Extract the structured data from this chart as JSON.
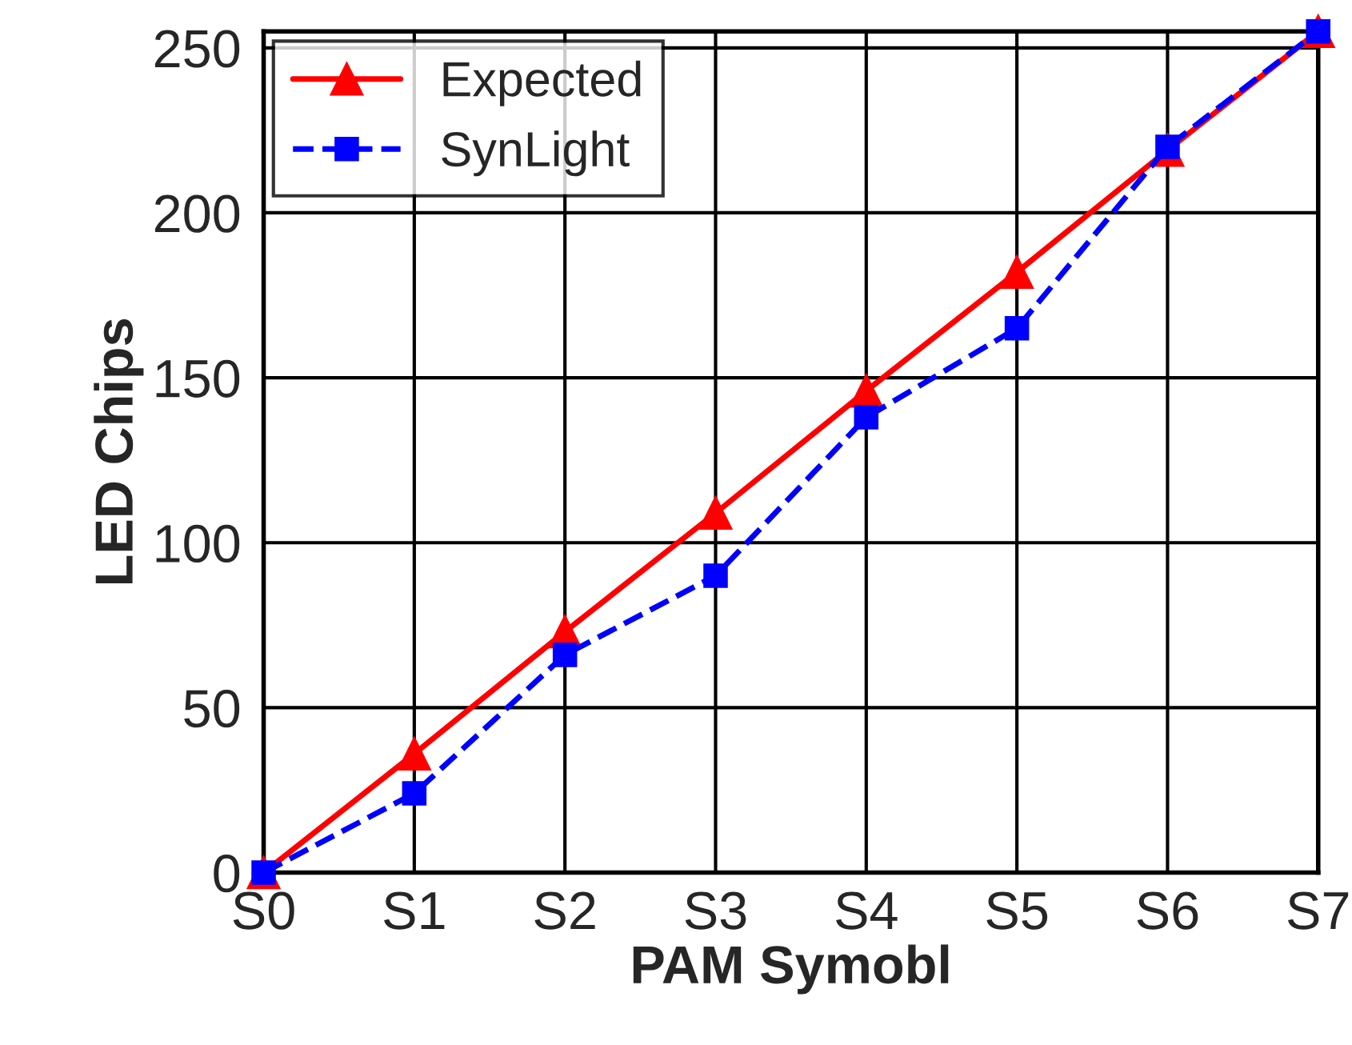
{
  "chart_data": {
    "type": "line",
    "xlabel": "PAM Symobl",
    "ylabel": "LED Chips",
    "categories": [
      "S0",
      "S1",
      "S2",
      "S3",
      "S4",
      "S5",
      "S6",
      "S7"
    ],
    "series": [
      {
        "name": "Expected",
        "color": "#ff0000",
        "marker": "triangle",
        "line_style": "solid",
        "values": [
          0,
          36,
          73,
          109,
          146,
          182,
          219,
          255
        ]
      },
      {
        "name": "SynLight",
        "color": "#0000ff",
        "marker": "square",
        "line_style": "dashed",
        "values": [
          0,
          24,
          66,
          90,
          138,
          165,
          220,
          255
        ]
      }
    ],
    "ylim": [
      0,
      255
    ],
    "yticks": [
      0,
      50,
      100,
      150,
      200,
      250
    ],
    "grid": true,
    "legend": "top left"
  }
}
